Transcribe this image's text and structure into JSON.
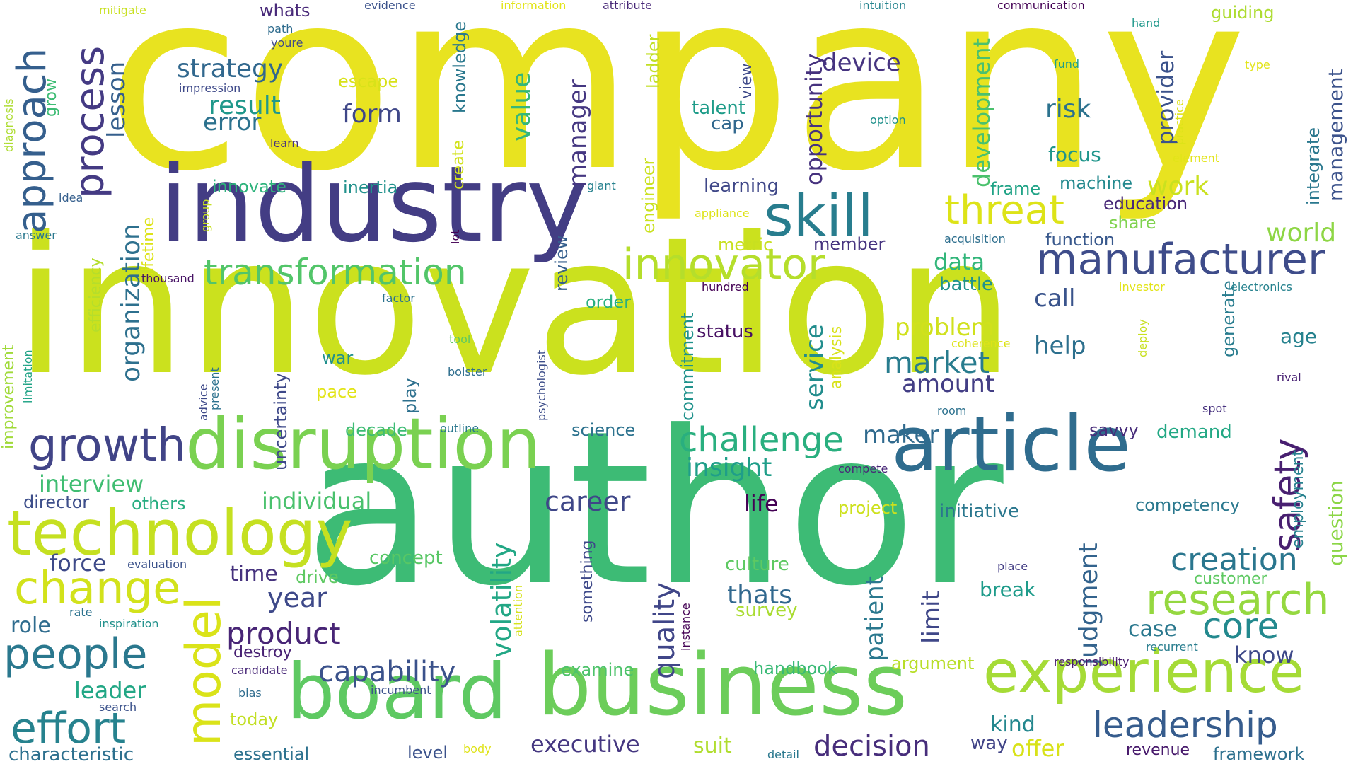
{
  "words": [
    {
      "text": "company",
      "color": "#e8e320"
    },
    {
      "text": "innovation",
      "color": "#cbe11e"
    },
    {
      "text": "author",
      "color": "#3dbb75"
    },
    {
      "text": "industry",
      "color": "#433d84"
    },
    {
      "text": "disruption",
      "color": "#7ad151"
    },
    {
      "text": "article",
      "color": "#2f6c8e"
    },
    {
      "text": "board",
      "color": "#5ec962"
    },
    {
      "text": "business",
      "color": "#6ccd5a"
    },
    {
      "text": "technology",
      "color": "#c5e021"
    },
    {
      "text": "experience",
      "color": "#a5db36"
    },
    {
      "text": "manufacturer",
      "color": "#3e4c8a"
    },
    {
      "text": "research",
      "color": "#95d840"
    },
    {
      "text": "growth",
      "color": "#414487"
    },
    {
      "text": "change",
      "color": "#d2e21b"
    },
    {
      "text": "skill",
      "color": "#287d8e"
    },
    {
      "text": "innovator",
      "color": "#b5de2b"
    },
    {
      "text": "transformation",
      "color": "#52c569"
    },
    {
      "text": "threat",
      "color": "#dde318"
    },
    {
      "text": "people",
      "color": "#2a788e"
    },
    {
      "text": "effort",
      "color": "#26828e"
    },
    {
      "text": "model",
      "color": "#dae319"
    },
    {
      "text": "process",
      "color": "#443a83"
    },
    {
      "text": "approach",
      "color": "#355f8d"
    },
    {
      "text": "leadership",
      "color": "#365c8d"
    },
    {
      "text": "challenge",
      "color": "#29af7f"
    },
    {
      "text": "safety",
      "color": "#481f70"
    },
    {
      "text": "creation",
      "color": "#2a768e"
    },
    {
      "text": "core",
      "color": "#23898e"
    },
    {
      "text": "product",
      "color": "#482576"
    },
    {
      "text": "capability",
      "color": "#3b528b"
    },
    {
      "text": "decision",
      "color": "#472d7b"
    },
    {
      "text": "executive",
      "color": "#453781"
    },
    {
      "text": "market",
      "color": "#287c8e"
    },
    {
      "text": "career",
      "color": "#3f4788"
    },
    {
      "text": "insight",
      "color": "#1f9e89"
    },
    {
      "text": "year",
      "color": "#3e4989"
    },
    {
      "text": "thats",
      "color": "#31688e"
    },
    {
      "text": "quality",
      "color": "#404688"
    },
    {
      "text": "volatility",
      "color": "#22a785"
    },
    {
      "text": "judgment",
      "color": "#33638d"
    },
    {
      "text": "organization",
      "color": "#2d708e"
    },
    {
      "text": "strategy",
      "color": "#31688e"
    },
    {
      "text": "result",
      "color": "#1f988b"
    },
    {
      "text": "error",
      "color": "#2c728e"
    },
    {
      "text": "lesson",
      "color": "#355f8d"
    },
    {
      "text": "form",
      "color": "#3f4788"
    },
    {
      "text": "value",
      "color": "#35b779"
    },
    {
      "text": "manager",
      "color": "#453781"
    },
    {
      "text": "device",
      "color": "#463480"
    },
    {
      "text": "risk",
      "color": "#2c728e"
    },
    {
      "text": "opportunity",
      "color": "#46327e"
    },
    {
      "text": "development",
      "color": "#4ac16d"
    },
    {
      "text": "provider",
      "color": "#3b528b"
    },
    {
      "text": "management",
      "color": "#3b528b"
    },
    {
      "text": "work",
      "color": "#cae11f"
    },
    {
      "text": "world",
      "color": "#8ed645"
    },
    {
      "text": "focus",
      "color": "#1f958b"
    },
    {
      "text": "machine",
      "color": "#23898e"
    },
    {
      "text": "education",
      "color": "#482878"
    },
    {
      "text": "function",
      "color": "#38588c"
    },
    {
      "text": "share",
      "color": "#7fd34e"
    },
    {
      "text": "frame",
      "color": "#20a386"
    },
    {
      "text": "integrate",
      "color": "#2a788e"
    },
    {
      "text": "data",
      "color": "#32b67a"
    },
    {
      "text": "battle",
      "color": "#20928c"
    },
    {
      "text": "call",
      "color": "#3a548c"
    },
    {
      "text": "problem",
      "color": "#d0e11c"
    },
    {
      "text": "help",
      "color": "#2d708e"
    },
    {
      "text": "amount",
      "color": "#433e85"
    },
    {
      "text": "service",
      "color": "#228d8d"
    },
    {
      "text": "age",
      "color": "#26828e"
    },
    {
      "text": "generate",
      "color": "#287c8e"
    },
    {
      "text": "question",
      "color": "#8bd646"
    },
    {
      "text": "employment",
      "color": "#26818e"
    },
    {
      "text": "competency",
      "color": "#2a788e"
    },
    {
      "text": "demand",
      "color": "#22a884"
    },
    {
      "text": "maker",
      "color": "#306a8e"
    },
    {
      "text": "interview",
      "color": "#40bd72"
    },
    {
      "text": "director",
      "color": "#3d4e8a"
    },
    {
      "text": "others",
      "color": "#27ad81"
    },
    {
      "text": "individual",
      "color": "#4ac16d"
    },
    {
      "text": "force",
      "color": "#3e4a89"
    },
    {
      "text": "time",
      "color": "#46327e"
    },
    {
      "text": "drive",
      "color": "#5ec962"
    },
    {
      "text": "concept",
      "color": "#58c765"
    },
    {
      "text": "life",
      "color": "#440154"
    },
    {
      "text": "culture",
      "color": "#5ec962"
    },
    {
      "text": "survey",
      "color": "#aadc32"
    },
    {
      "text": "patient",
      "color": "#2a788e"
    },
    {
      "text": "limit",
      "color": "#3f4788"
    },
    {
      "text": "break",
      "color": "#1e9b8a"
    },
    {
      "text": "case",
      "color": "#2a788e"
    },
    {
      "text": "know",
      "color": "#3e4989"
    },
    {
      "text": "role",
      "color": "#2f6c8e"
    },
    {
      "text": "leader",
      "color": "#22a785"
    },
    {
      "text": "characteristic",
      "color": "#2d708e"
    },
    {
      "text": "essential",
      "color": "#2c718e"
    },
    {
      "text": "level",
      "color": "#3b528b"
    },
    {
      "text": "today",
      "color": "#c2df23"
    },
    {
      "text": "destroy",
      "color": "#482173"
    },
    {
      "text": "handbook",
      "color": "#3aba76"
    },
    {
      "text": "argument",
      "color": "#b8de29"
    },
    {
      "text": "examine",
      "color": "#4ec36b"
    },
    {
      "text": "suit",
      "color": "#b0dd2f"
    },
    {
      "text": "kind",
      "color": "#24878e"
    },
    {
      "text": "way",
      "color": "#414487"
    },
    {
      "text": "offer",
      "color": "#d8e219"
    },
    {
      "text": "revenue",
      "color": "#481a6c"
    },
    {
      "text": "framework",
      "color": "#2d708e"
    },
    {
      "text": "project",
      "color": "#cde11d"
    },
    {
      "text": "initiative",
      "color": "#2a778e"
    },
    {
      "text": "commitment",
      "color": "#20928c"
    },
    {
      "text": "status",
      "color": "#471063"
    },
    {
      "text": "member",
      "color": "#46337f"
    },
    {
      "text": "metric",
      "color": "#c8e020"
    },
    {
      "text": "learning",
      "color": "#3f4788"
    },
    {
      "text": "talent",
      "color": "#1e9c89"
    },
    {
      "text": "cap",
      "color": "#31688e"
    },
    {
      "text": "view",
      "color": "#3e4989"
    },
    {
      "text": "order",
      "color": "#2ab07f"
    },
    {
      "text": "review",
      "color": "#355f8d"
    },
    {
      "text": "engineer",
      "color": "#cae11f"
    },
    {
      "text": "ladder",
      "color": "#c2df23"
    },
    {
      "text": "knowledge",
      "color": "#2a788e"
    },
    {
      "text": "create",
      "color": "#d2e21b"
    },
    {
      "text": "inertia",
      "color": "#21918c"
    },
    {
      "text": "innovate",
      "color": "#2eb37c"
    },
    {
      "text": "escape",
      "color": "#d8e219"
    },
    {
      "text": "whats",
      "color": "#482979"
    },
    {
      "text": "war",
      "color": "#21908d"
    },
    {
      "text": "pace",
      "color": "#e2e418"
    },
    {
      "text": "science",
      "color": "#2c728e"
    },
    {
      "text": "decade",
      "color": "#3dbc74"
    },
    {
      "text": "play",
      "color": "#2d708e"
    },
    {
      "text": "uncertainty",
      "color": "#3e4989"
    },
    {
      "text": "savvy",
      "color": "#472c7a"
    },
    {
      "text": "customer",
      "color": "#5ec962"
    },
    {
      "text": "recurrent",
      "color": "#287d8e"
    },
    {
      "text": "responsibility",
      "color": "#481c6e"
    },
    {
      "text": "place",
      "color": "#433d84"
    },
    {
      "text": "spot",
      "color": "#46307e"
    },
    {
      "text": "rival",
      "color": "#482173"
    },
    {
      "text": "room",
      "color": "#2c718e"
    },
    {
      "text": "coherence",
      "color": "#dde318"
    },
    {
      "text": "deploy",
      "color": "#c8e020"
    },
    {
      "text": "investor",
      "color": "#e2e418"
    },
    {
      "text": "electronics",
      "color": "#26828e"
    },
    {
      "text": "acquisition",
      "color": "#2e6f8e"
    },
    {
      "text": "hundred",
      "color": "#440154"
    },
    {
      "text": "thousand",
      "color": "#471365"
    },
    {
      "text": "factor",
      "color": "#2c728e"
    },
    {
      "text": "tool",
      "color": "#5ec962"
    },
    {
      "text": "bolster",
      "color": "#2e6e8e"
    },
    {
      "text": "outline",
      "color": "#2a788e"
    },
    {
      "text": "compete",
      "color": "#482677"
    },
    {
      "text": "something",
      "color": "#3e4989"
    },
    {
      "text": "psychologist",
      "color": "#3d4e8a"
    },
    {
      "text": "attention",
      "color": "#d5e21a"
    },
    {
      "text": "instance",
      "color": "#440154"
    },
    {
      "text": "detail",
      "color": "#2a788e"
    },
    {
      "text": "body",
      "color": "#dfe318"
    },
    {
      "text": "incumbent",
      "color": "#3b528b"
    },
    {
      "text": "bias",
      "color": "#2f6c8e"
    },
    {
      "text": "search",
      "color": "#3b528b"
    },
    {
      "text": "candidate",
      "color": "#482878"
    },
    {
      "text": "inspiration",
      "color": "#21918c"
    },
    {
      "text": "rate",
      "color": "#2c728e"
    },
    {
      "text": "evaluation",
      "color": "#3b528b"
    },
    {
      "text": "advice",
      "color": "#3e4989"
    },
    {
      "text": "present",
      "color": "#2c728e"
    },
    {
      "text": "improvement",
      "color": "#a0da39"
    },
    {
      "text": "limitation",
      "color": "#20a386"
    },
    {
      "text": "efficiency",
      "color": "#b5de2b"
    },
    {
      "text": "lifetime",
      "color": "#dde318"
    },
    {
      "text": "answer",
      "color": "#2a788e"
    },
    {
      "text": "idea",
      "color": "#355f8d"
    },
    {
      "text": "group",
      "color": "#c5e021"
    },
    {
      "text": "grow",
      "color": "#3dbc74"
    },
    {
      "text": "diagnosis",
      "color": "#addc30"
    },
    {
      "text": "impression",
      "color": "#3e4989"
    },
    {
      "text": "learn",
      "color": "#46327e"
    },
    {
      "text": "youre",
      "color": "#3e4989"
    },
    {
      "text": "path",
      "color": "#2f6c8e"
    },
    {
      "text": "mitigate",
      "color": "#c8e020"
    },
    {
      "text": "evidence",
      "color": "#3b528b"
    },
    {
      "text": "information",
      "color": "#e2e418"
    },
    {
      "text": "attribute",
      "color": "#482878"
    },
    {
      "text": "intuition",
      "color": "#25848e"
    },
    {
      "text": "communication",
      "color": "#440154"
    },
    {
      "text": "hand",
      "color": "#1f988b"
    },
    {
      "text": "guiding",
      "color": "#addc30"
    },
    {
      "text": "fund",
      "color": "#1f9e89"
    },
    {
      "text": "type",
      "color": "#e2e418"
    },
    {
      "text": "option",
      "color": "#21918c"
    },
    {
      "text": "practice",
      "color": "#dde318"
    },
    {
      "text": "element",
      "color": "#e2e418"
    },
    {
      "text": "giant",
      "color": "#26818e"
    },
    {
      "text": "appliance",
      "color": "#dde318"
    },
    {
      "text": "lot",
      "color": "#440154"
    },
    {
      "text": "analysis",
      "color": "#d8e219"
    }
  ]
}
